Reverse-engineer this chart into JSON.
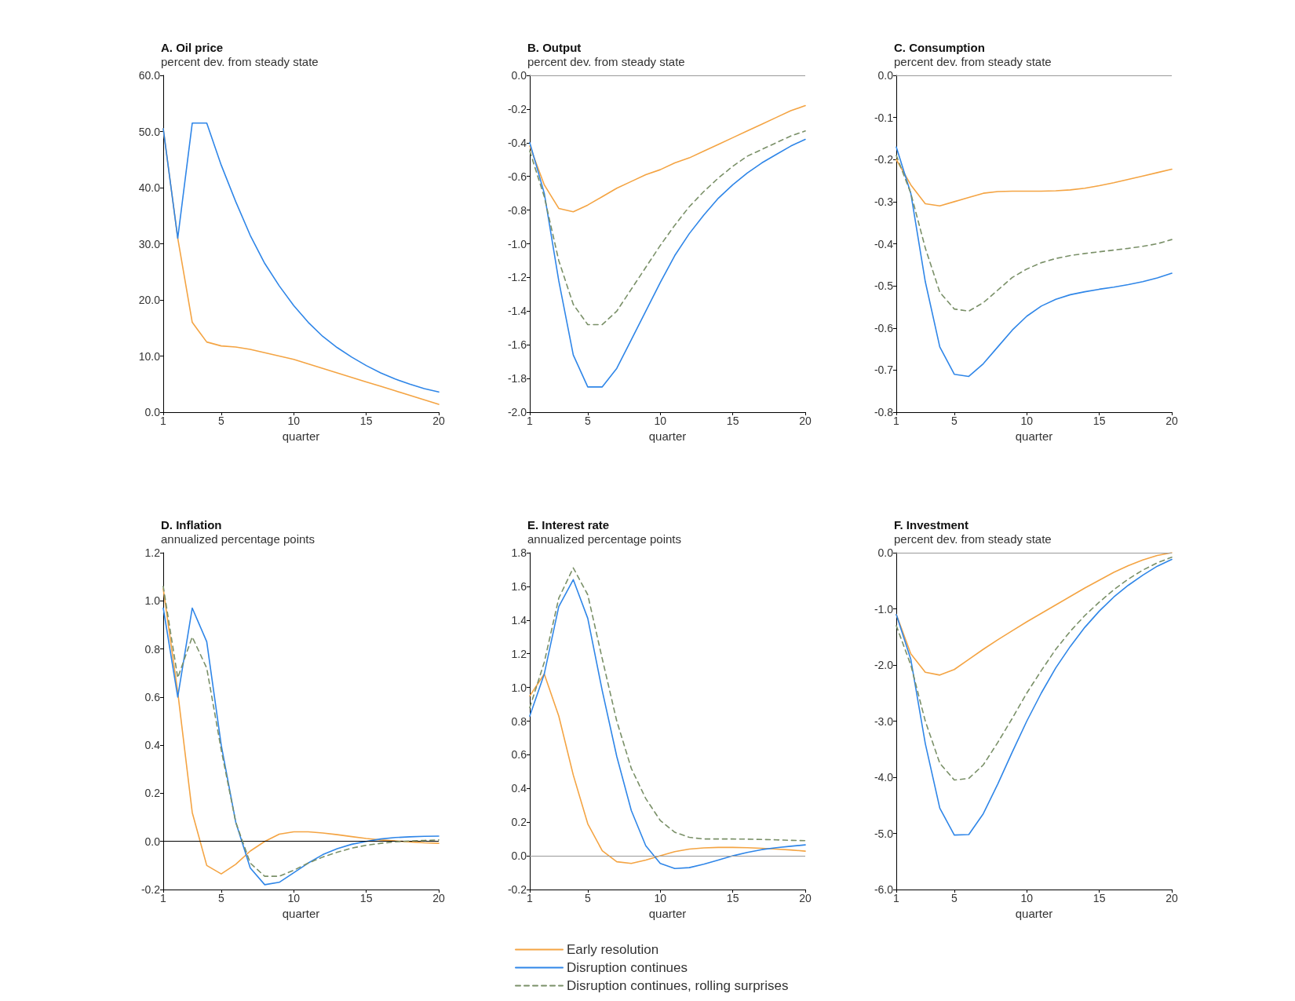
{
  "chart_data": [
    {
      "type": "line",
      "title": "A. Oil price",
      "subtitle": "percent dev. from steady state",
      "xlabel": "quarter",
      "x": [
        1,
        2,
        3,
        4,
        5,
        6,
        7,
        8,
        9,
        10,
        11,
        12,
        13,
        14,
        15,
        16,
        17,
        18,
        19,
        20
      ],
      "xlim": [
        1,
        20
      ],
      "xticks": [
        1,
        5,
        10,
        15,
        20
      ],
      "ylim": [
        0,
        60
      ],
      "yticks": [
        {
          "value": 0,
          "label": "0.0"
        },
        {
          "value": 10,
          "label": "10.0"
        },
        {
          "value": 20,
          "label": "20.0"
        },
        {
          "value": 30,
          "label": "30.0"
        },
        {
          "value": 40,
          "label": "40.0"
        },
        {
          "value": 50,
          "label": "50.0"
        },
        {
          "value": 60,
          "label": "60.0"
        }
      ],
      "series": [
        {
          "color": "#f4a443",
          "line_style": "solid",
          "values": [
            50.5,
            31,
            16,
            12.5,
            11.8,
            11.6,
            11.2,
            10.6,
            10,
            9.4,
            8.6,
            7.8,
            7,
            6.2,
            5.4,
            4.6,
            3.8,
            3,
            2.2,
            1.4
          ]
        },
        {
          "color": "#2f86e8",
          "line_style": "solid",
          "values": [
            50.5,
            31,
            51.5,
            51.5,
            44,
            37.5,
            31.5,
            26.5,
            22.5,
            19,
            16,
            13.5,
            11.5,
            9.8,
            8.3,
            7,
            5.9,
            5,
            4.2,
            3.6
          ]
        }
      ]
    },
    {
      "type": "line",
      "title": "B. Output",
      "subtitle": "percent dev. from steady state",
      "xlabel": "quarter",
      "x": [
        1,
        2,
        3,
        4,
        5,
        6,
        7,
        8,
        9,
        10,
        11,
        12,
        13,
        14,
        15,
        16,
        17,
        18,
        19,
        20
      ],
      "xlim": [
        1,
        20
      ],
      "xticks": [
        1,
        5,
        10,
        15,
        20
      ],
      "ylim": [
        -2,
        0
      ],
      "yticks": [
        {
          "value": -2,
          "label": "-2.0"
        },
        -1.8,
        -1.6,
        -1.4,
        -1.2,
        {
          "value": -1,
          "label": "-1.0"
        },
        -0.8,
        -0.6,
        -0.4,
        -0.2,
        {
          "value": 0,
          "label": "0.0"
        }
      ],
      "ref_lines": [
        {
          "axis": "y",
          "value": 0,
          "color": "#999999"
        }
      ],
      "series": [
        {
          "color": "#f4a443",
          "line_style": "solid",
          "values": [
            -0.42,
            -0.65,
            -0.79,
            -0.81,
            -0.77,
            -0.72,
            -0.67,
            -0.63,
            -0.59,
            -0.56,
            -0.52,
            -0.49,
            -0.45,
            -0.41,
            -0.37,
            -0.33,
            -0.29,
            -0.25,
            -0.21,
            -0.18
          ]
        },
        {
          "color": "#2f86e8",
          "line_style": "solid",
          "values": [
            -0.4,
            -0.7,
            -1.22,
            -1.66,
            -1.85,
            -1.85,
            -1.74,
            -1.57,
            -1.4,
            -1.23,
            -1.07,
            -0.94,
            -0.83,
            -0.73,
            -0.65,
            -0.58,
            -0.52,
            -0.47,
            -0.42,
            -0.38
          ]
        },
        {
          "color": "#7a9068",
          "line_style": "dashed",
          "values": [
            -0.45,
            -0.72,
            -1.1,
            -1.36,
            -1.48,
            -1.48,
            -1.4,
            -1.27,
            -1.14,
            -1.01,
            -0.89,
            -0.78,
            -0.69,
            -0.61,
            -0.54,
            -0.48,
            -0.44,
            -0.4,
            -0.36,
            -0.33
          ]
        }
      ]
    },
    {
      "type": "line",
      "title": "C. Consumption",
      "subtitle": "percent dev. from steady state",
      "xlabel": "quarter",
      "x": [
        1,
        2,
        3,
        4,
        5,
        6,
        7,
        8,
        9,
        10,
        11,
        12,
        13,
        14,
        15,
        16,
        17,
        18,
        19,
        20
      ],
      "xlim": [
        1,
        20
      ],
      "xticks": [
        1,
        5,
        10,
        15,
        20
      ],
      "ylim": [
        -0.8,
        0
      ],
      "yticks": [
        -0.8,
        -0.7,
        -0.6,
        -0.5,
        -0.4,
        -0.3,
        -0.2,
        -0.1,
        {
          "value": 0,
          "label": "0.0"
        }
      ],
      "ref_lines": [
        {
          "axis": "y",
          "value": 0,
          "color": "#999999"
        }
      ],
      "series": [
        {
          "color": "#f4a443",
          "line_style": "solid",
          "values": [
            -0.2,
            -0.26,
            -0.305,
            -0.31,
            -0.3,
            -0.29,
            -0.28,
            -0.276,
            -0.275,
            -0.275,
            -0.275,
            -0.274,
            -0.272,
            -0.268,
            -0.262,
            -0.255,
            -0.247,
            -0.239,
            -0.231,
            -0.223
          ]
        },
        {
          "color": "#2f86e8",
          "line_style": "solid",
          "values": [
            -0.17,
            -0.28,
            -0.49,
            -0.645,
            -0.71,
            -0.715,
            -0.685,
            -0.645,
            -0.605,
            -0.572,
            -0.548,
            -0.532,
            -0.521,
            -0.514,
            -0.508,
            -0.503,
            -0.497,
            -0.49,
            -0.481,
            -0.47
          ]
        },
        {
          "color": "#7a9068",
          "line_style": "dashed",
          "values": [
            -0.19,
            -0.28,
            -0.41,
            -0.515,
            -0.555,
            -0.56,
            -0.54,
            -0.51,
            -0.48,
            -0.46,
            -0.445,
            -0.435,
            -0.428,
            -0.423,
            -0.419,
            -0.415,
            -0.411,
            -0.406,
            -0.4,
            -0.39
          ]
        }
      ]
    },
    {
      "type": "line",
      "title": "D. Inflation",
      "subtitle": "annualized percentage points",
      "xlabel": "quarter",
      "x": [
        1,
        2,
        3,
        4,
        5,
        6,
        7,
        8,
        9,
        10,
        11,
        12,
        13,
        14,
        15,
        16,
        17,
        18,
        19,
        20
      ],
      "xlim": [
        1,
        20
      ],
      "xticks": [
        1,
        5,
        10,
        15,
        20
      ],
      "ylim": [
        -0.2,
        1.2
      ],
      "yticks": [
        -0.2,
        {
          "value": 0,
          "label": "0.0"
        },
        0.2,
        0.4,
        0.6,
        0.8,
        {
          "value": 1,
          "label": "1.0"
        },
        1.2
      ],
      "ref_lines": [
        {
          "axis": "y",
          "value": 0,
          "color": "#000000"
        }
      ],
      "series": [
        {
          "color": "#f4a443",
          "line_style": "solid",
          "values": [
            1.05,
            0.62,
            0.12,
            -0.1,
            -0.135,
            -0.095,
            -0.04,
            0,
            0.03,
            0.04,
            0.04,
            0.035,
            0.028,
            0.02,
            0.012,
            0.006,
            0.002,
            -0.002,
            -0.006,
            -0.008
          ]
        },
        {
          "color": "#2f86e8",
          "line_style": "solid",
          "values": [
            0.97,
            0.6,
            0.97,
            0.83,
            0.4,
            0.08,
            -0.11,
            -0.18,
            -0.17,
            -0.13,
            -0.09,
            -0.055,
            -0.03,
            -0.012,
            0,
            0.01,
            0.016,
            0.019,
            0.021,
            0.022
          ]
        },
        {
          "color": "#7a9068",
          "line_style": "dashed",
          "values": [
            1.06,
            0.68,
            0.85,
            0.72,
            0.38,
            0.08,
            -0.09,
            -0.145,
            -0.145,
            -0.12,
            -0.09,
            -0.065,
            -0.045,
            -0.028,
            -0.016,
            -0.008,
            -0.002,
            0.002,
            0.004,
            0.006
          ]
        }
      ]
    },
    {
      "type": "line",
      "title": "E. Interest rate",
      "subtitle": "annualized percentage points",
      "xlabel": "quarter",
      "legend": "bottom",
      "x": [
        1,
        2,
        3,
        4,
        5,
        6,
        7,
        8,
        9,
        10,
        11,
        12,
        13,
        14,
        15,
        16,
        17,
        18,
        19,
        20
      ],
      "xlim": [
        1,
        20
      ],
      "xticks": [
        1,
        5,
        10,
        15,
        20
      ],
      "ylim": [
        -0.2,
        1.8
      ],
      "yticks": [
        -0.2,
        {
          "value": 0,
          "label": "0.0"
        },
        0.2,
        0.4,
        0.6,
        0.8,
        {
          "value": 1,
          "label": "1.0"
        },
        1.2,
        1.4,
        1.6,
        1.8
      ],
      "ref_lines": [
        {
          "axis": "y",
          "value": 0,
          "color": "#999999"
        }
      ],
      "series": [
        {
          "name": "Early resolution",
          "color": "#f4a443",
          "line_style": "solid",
          "values": [
            0.95,
            1.08,
            0.83,
            0.48,
            0.19,
            0.03,
            -0.035,
            -0.045,
            -0.025,
            0,
            0.025,
            0.04,
            0.047,
            0.05,
            0.05,
            0.048,
            0.045,
            0.04,
            0.035,
            0.028
          ]
        },
        {
          "name": "Disruption continues",
          "color": "#2f86e8",
          "line_style": "solid",
          "values": [
            0.83,
            1.08,
            1.48,
            1.64,
            1.41,
            0.98,
            0.59,
            0.27,
            0.06,
            -0.045,
            -0.075,
            -0.07,
            -0.05,
            -0.025,
            0,
            0.02,
            0.037,
            0.048,
            0.057,
            0.065
          ]
        },
        {
          "name": "Disruption continues, rolling surprises",
          "color": "#7a9068",
          "line_style": "dashed",
          "values": [
            0.88,
            1.15,
            1.53,
            1.71,
            1.55,
            1.17,
            0.8,
            0.52,
            0.34,
            0.21,
            0.14,
            0.11,
            0.1,
            0.1,
            0.1,
            0.099,
            0.097,
            0.095,
            0.092,
            0.09
          ]
        }
      ]
    },
    {
      "type": "line",
      "title": "F. Investment",
      "subtitle": "percent dev. from steady state",
      "xlabel": "quarter",
      "x": [
        1,
        2,
        3,
        4,
        5,
        6,
        7,
        8,
        9,
        10,
        11,
        12,
        13,
        14,
        15,
        16,
        17,
        18,
        19,
        20
      ],
      "xlim": [
        1,
        20
      ],
      "xticks": [
        1,
        5,
        10,
        15,
        20
      ],
      "ylim": [
        -6,
        0
      ],
      "yticks": [
        {
          "value": -6,
          "label": "-6.0"
        },
        {
          "value": -5,
          "label": "-5.0"
        },
        {
          "value": -4,
          "label": "-4.0"
        },
        {
          "value": -3,
          "label": "-3.0"
        },
        {
          "value": -2,
          "label": "-2.0"
        },
        {
          "value": -1,
          "label": "-1.0"
        },
        {
          "value": 0,
          "label": "0.0"
        }
      ],
      "ref_lines": [
        {
          "axis": "y",
          "value": 0,
          "color": "#999999"
        }
      ],
      "series": [
        {
          "color": "#f4a443",
          "line_style": "solid",
          "values": [
            -1.1,
            -1.8,
            -2.13,
            -2.18,
            -2.08,
            -1.9,
            -1.72,
            -1.55,
            -1.39,
            -1.23,
            -1.08,
            -0.93,
            -0.78,
            -0.63,
            -0.49,
            -0.35,
            -0.23,
            -0.13,
            -0.05,
            0
          ]
        },
        {
          "color": "#2f86e8",
          "line_style": "solid",
          "values": [
            -1.1,
            -1.9,
            -3.4,
            -4.55,
            -5.03,
            -5.02,
            -4.65,
            -4.12,
            -3.55,
            -3,
            -2.5,
            -2.05,
            -1.67,
            -1.33,
            -1.04,
            -0.79,
            -0.58,
            -0.4,
            -0.24,
            -0.12
          ]
        },
        {
          "color": "#7a9068",
          "line_style": "dashed",
          "values": [
            -1.3,
            -2,
            -3,
            -3.75,
            -4.05,
            -4.02,
            -3.78,
            -3.38,
            -2.95,
            -2.5,
            -2.1,
            -1.72,
            -1.4,
            -1.12,
            -0.88,
            -0.66,
            -0.47,
            -0.31,
            -0.18,
            -0.08
          ]
        }
      ]
    }
  ]
}
